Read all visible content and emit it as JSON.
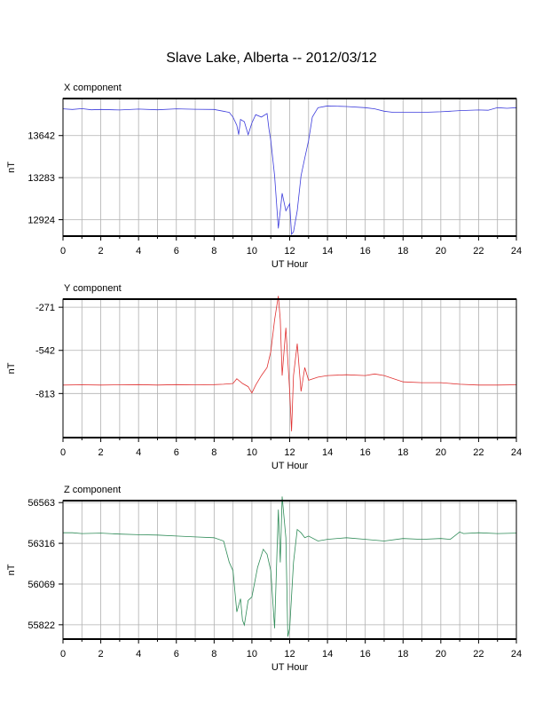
{
  "title": "Slave Lake, Alberta -- 2012/03/12",
  "chart_data": [
    {
      "type": "line",
      "panel_title": "X component",
      "xlabel": "UT Hour",
      "ylabel": "nT",
      "xlim": [
        0,
        24
      ],
      "ylim": [
        12784,
        13958
      ],
      "xticks": [
        0,
        2,
        4,
        6,
        8,
        10,
        12,
        14,
        16,
        18,
        20,
        22,
        24
      ],
      "yticks": [
        12924,
        13283,
        13642
      ],
      "grid": true,
      "color": "#3c3cdc",
      "x": [
        0,
        0.5,
        1,
        1.5,
        2,
        3,
        4,
        5,
        6,
        7,
        8,
        8.8,
        9.0,
        9.2,
        9.3,
        9.4,
        9.6,
        9.8,
        10.0,
        10.2,
        10.5,
        10.8,
        10.9,
        11.0,
        11.2,
        11.4,
        11.5,
        11.6,
        11.8,
        12.0,
        12.1,
        12.2,
        12.4,
        12.6,
        12.8,
        13.0,
        13.2,
        13.5,
        14,
        15,
        16,
        16.5,
        17,
        17.5,
        18,
        19,
        20,
        20.5,
        21,
        22,
        22.5,
        23,
        23.5,
        24
      ],
      "values": [
        13870,
        13865,
        13872,
        13862,
        13865,
        13860,
        13868,
        13862,
        13870,
        13866,
        13865,
        13840,
        13800,
        13730,
        13650,
        13780,
        13760,
        13650,
        13750,
        13820,
        13800,
        13830,
        13700,
        13600,
        13300,
        12850,
        13000,
        13150,
        13000,
        13060,
        12800,
        12820,
        13000,
        13300,
        13450,
        13600,
        13800,
        13880,
        13895,
        13890,
        13880,
        13870,
        13850,
        13840,
        13840,
        13840,
        13845,
        13850,
        13855,
        13860,
        13858,
        13880,
        13875,
        13880
      ]
    },
    {
      "type": "line",
      "panel_title": "Y component",
      "xlabel": "UT Hour",
      "ylabel": "nT",
      "xlim": [
        0,
        24
      ],
      "ylim": [
        -1090,
        -220
      ],
      "xticks": [
        0,
        2,
        4,
        6,
        8,
        10,
        12,
        14,
        16,
        18,
        20,
        22,
        24
      ],
      "yticks": [
        -813,
        -542,
        -271
      ],
      "grid": true,
      "color": "#e03030",
      "x": [
        0,
        1,
        2,
        3,
        4,
        5,
        6,
        7,
        8,
        8.5,
        9.0,
        9.2,
        9.5,
        9.8,
        10.0,
        10.2,
        10.5,
        10.8,
        11.0,
        11.2,
        11.4,
        11.5,
        11.6,
        11.8,
        12.0,
        12.1,
        12.2,
        12.4,
        12.6,
        12.8,
        13.0,
        13.5,
        14,
        15,
        16,
        16.5,
        17,
        18,
        19,
        20,
        21,
        22,
        23,
        24
      ],
      "values": [
        -760,
        -758,
        -760,
        -758,
        -757,
        -760,
        -757,
        -758,
        -757,
        -755,
        -750,
        -720,
        -750,
        -770,
        -810,
        -760,
        -700,
        -650,
        -550,
        -350,
        -200,
        -350,
        -700,
        -400,
        -800,
        -1050,
        -700,
        -500,
        -800,
        -650,
        -730,
        -710,
        -700,
        -695,
        -700,
        -690,
        -700,
        -740,
        -745,
        -745,
        -755,
        -760,
        -760,
        -758
      ]
    },
    {
      "type": "line",
      "panel_title": "Z component",
      "xlabel": "UT Hour",
      "ylabel": "nT",
      "xlim": [
        0,
        24
      ],
      "ylim": [
        55735,
        56575
      ],
      "xticks": [
        0,
        2,
        4,
        6,
        8,
        10,
        12,
        14,
        16,
        18,
        20,
        22,
        24
      ],
      "yticks": [
        55822,
        56069,
        56316,
        56563
      ],
      "grid": true,
      "color": "#2e8b57",
      "x": [
        0,
        0.5,
        1,
        2,
        3,
        4,
        5,
        6,
        7,
        8,
        8.5,
        8.8,
        9.0,
        9.2,
        9.4,
        9.5,
        9.6,
        9.8,
        10.0,
        10.3,
        10.6,
        10.8,
        11.0,
        11.2,
        11.4,
        11.5,
        11.6,
        11.8,
        11.9,
        12.0,
        12.2,
        12.4,
        12.6,
        12.8,
        13.0,
        13.5,
        14,
        15,
        16,
        17,
        18,
        19,
        20,
        20.5,
        21,
        21.2,
        22,
        23,
        24
      ],
      "values": [
        56380,
        56380,
        56375,
        56378,
        56372,
        56368,
        56366,
        56360,
        56355,
        56350,
        56330,
        56200,
        56150,
        55900,
        55980,
        55850,
        55820,
        55970,
        55990,
        56170,
        56280,
        56250,
        56150,
        55800,
        56520,
        56200,
        56600,
        56350,
        55750,
        55800,
        56200,
        56400,
        56380,
        56350,
        56360,
        56330,
        56340,
        56350,
        56340,
        56330,
        56345,
        56340,
        56345,
        56340,
        56385,
        56375,
        56380,
        56375,
        56378
      ]
    }
  ]
}
